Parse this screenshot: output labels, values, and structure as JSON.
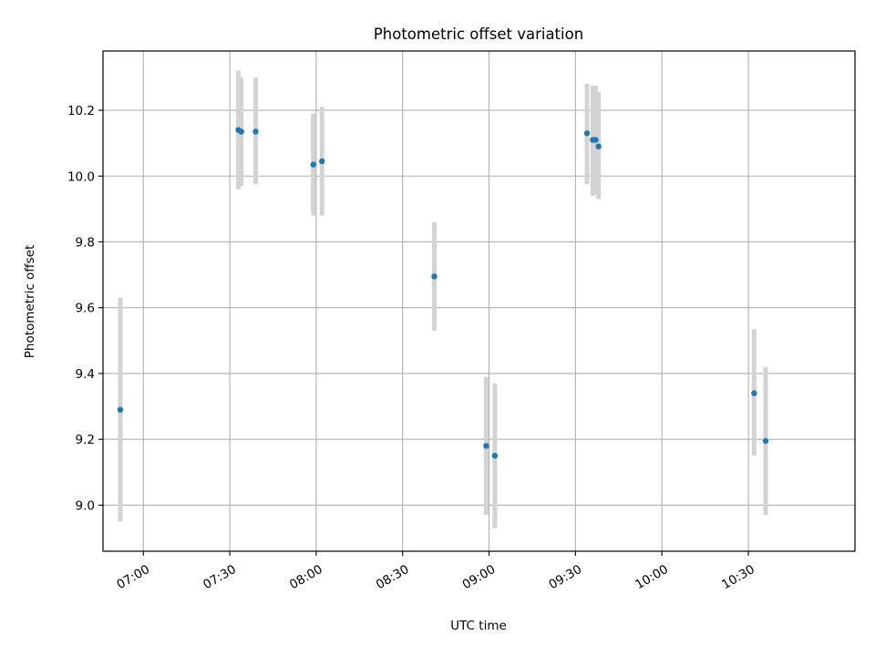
{
  "chart_data": {
    "type": "scatter",
    "title": "Photometric offset variation",
    "xlabel": "UTC time",
    "ylabel": "Photometric offset",
    "x_tick_labels": [
      "07:00",
      "07:30",
      "08:00",
      "08:30",
      "09:00",
      "09:30",
      "10:00",
      "10:30"
    ],
    "y_ticks": [
      9.0,
      9.2,
      9.4,
      9.6,
      9.8,
      10.0,
      10.2
    ],
    "y_tick_labels": [
      "9.0",
      "9.2",
      "9.4",
      "9.6",
      "9.8",
      "10.0",
      "10.2"
    ],
    "xlim": [
      "06:46",
      "11:07"
    ],
    "ylim": [
      8.86,
      10.38
    ],
    "grid": true,
    "colors": {
      "point": "#1f77b4",
      "error_bar": "#d3d3d3",
      "grid": "#b0b0b0",
      "axes": "#000000"
    },
    "points": [
      {
        "t": "06:52",
        "y": 9.29,
        "lo": 8.95,
        "hi": 9.63
      },
      {
        "t": "07:33",
        "y": 10.14,
        "lo": 9.96,
        "hi": 10.32
      },
      {
        "t": "07:34",
        "y": 10.135,
        "lo": 9.97,
        "hi": 10.3
      },
      {
        "t": "07:39",
        "y": 10.135,
        "lo": 9.975,
        "hi": 10.3
      },
      {
        "t": "07:59",
        "y": 10.035,
        "lo": 9.88,
        "hi": 10.19
      },
      {
        "t": "08:02",
        "y": 10.045,
        "lo": 9.88,
        "hi": 10.21
      },
      {
        "t": "08:41",
        "y": 9.695,
        "lo": 9.53,
        "hi": 9.86
      },
      {
        "t": "08:59",
        "y": 9.18,
        "lo": 8.97,
        "hi": 9.39
      },
      {
        "t": "09:02",
        "y": 9.15,
        "lo": 8.93,
        "hi": 9.37
      },
      {
        "t": "09:34",
        "y": 10.13,
        "lo": 9.975,
        "hi": 10.28
      },
      {
        "t": "09:36",
        "y": 10.11,
        "lo": 9.94,
        "hi": 10.275
      },
      {
        "t": "09:37",
        "y": 10.11,
        "lo": 9.945,
        "hi": 10.275
      },
      {
        "t": "09:38",
        "y": 10.09,
        "lo": 9.93,
        "hi": 10.255
      },
      {
        "t": "10:32",
        "y": 9.34,
        "lo": 9.15,
        "hi": 9.535
      },
      {
        "t": "10:36",
        "y": 9.195,
        "lo": 8.97,
        "hi": 9.42
      }
    ]
  }
}
